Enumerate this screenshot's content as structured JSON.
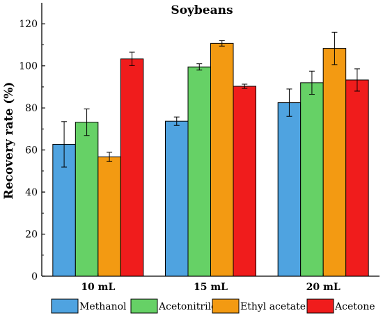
{
  "chart_data": {
    "type": "bar",
    "title": "Soybeans",
    "xlabel": "",
    "ylabel": "Recovery rate (%)",
    "ylim": [
      0,
      130
    ],
    "yticks": [
      0,
      20,
      40,
      60,
      80,
      100,
      120
    ],
    "categories": [
      "10 mL",
      "15 mL",
      "20 mL"
    ],
    "series": [
      {
        "name": "Methanol",
        "color": "#4fa3e0",
        "values": [
          62.7,
          73.7,
          82.5
        ],
        "errors": [
          10.8,
          2.0,
          6.5
        ]
      },
      {
        "name": "Acetonitrile",
        "color": "#66d166",
        "values": [
          73.2,
          99.5,
          92.0
        ],
        "errors": [
          6.3,
          1.5,
          5.5
        ]
      },
      {
        "name": "Ethyl acetate",
        "color": "#f39a12",
        "values": [
          56.7,
          110.7,
          108.3
        ],
        "errors": [
          2.2,
          1.3,
          7.7
        ]
      },
      {
        "name": "Acetone",
        "color": "#f01c1c",
        "values": [
          103.3,
          90.3,
          93.3
        ],
        "errors": [
          3.2,
          1.0,
          5.3
        ]
      }
    ],
    "legend_position": "bottom",
    "grid": false
  }
}
